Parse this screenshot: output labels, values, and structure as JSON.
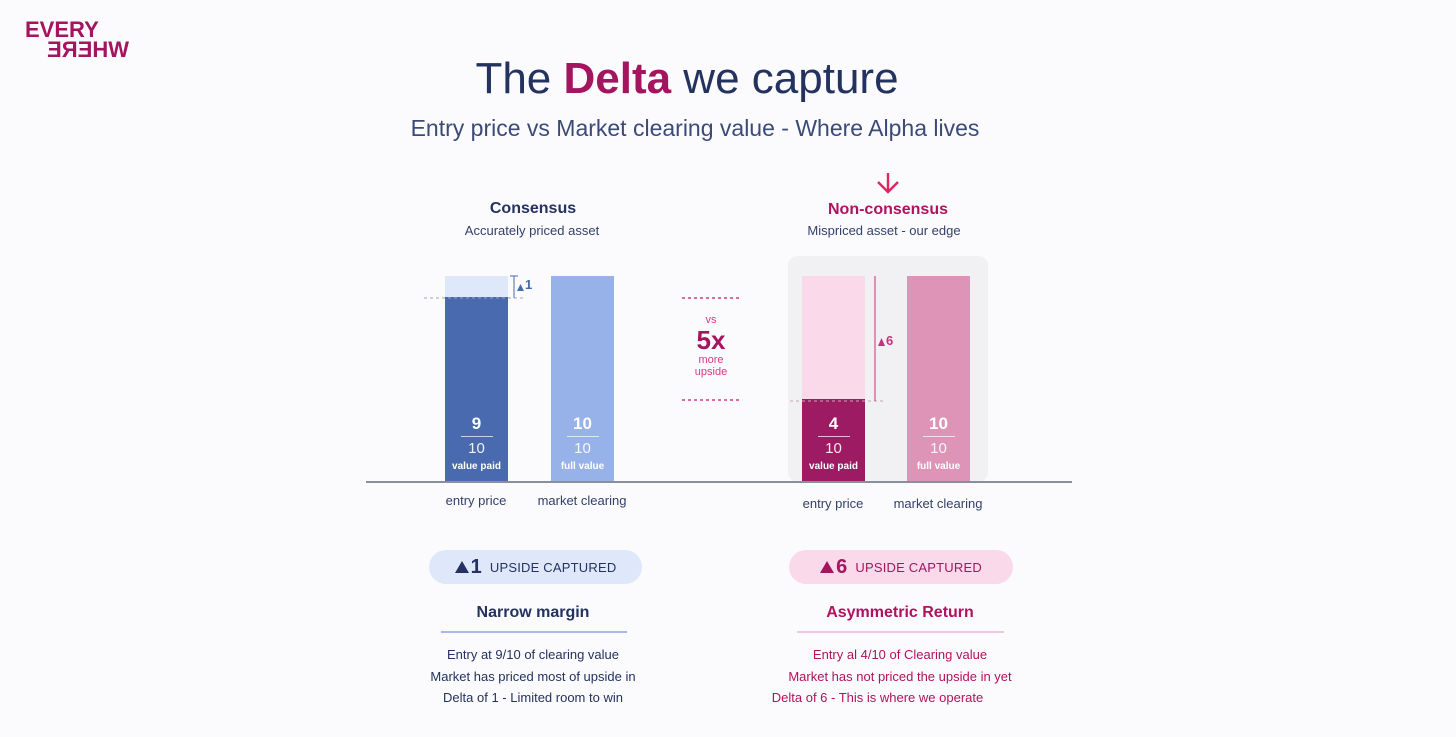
{
  "logo": {
    "line1": "EVERY",
    "line2": "WHERE"
  },
  "title": {
    "prefix": "The ",
    "accent": "Delta",
    "suffix": " we capture"
  },
  "subtitle": "Entry price vs Market clearing value - Where Alpha lives",
  "colors": {
    "navy": "#23325e",
    "magenta": "#a3155f",
    "consensus_entry": "#4a6aaf",
    "consensus_full": "#97b2e8",
    "consensus_gap": "#dfe8fb",
    "nc_entry": "#9c1b63",
    "nc_full": "#de94b6",
    "nc_gap": "#f9d9ea"
  },
  "chart_data": [
    {
      "type": "bar",
      "title": "Consensus",
      "subtitle": "Accurately priced asset",
      "categories": [
        "entry price",
        "market clearing"
      ],
      "values": [
        9,
        10
      ],
      "denominator": 10,
      "bar_captions": [
        "value paid",
        "full value"
      ],
      "delta": 1,
      "delta_label": "1",
      "ylim": [
        0,
        10
      ]
    },
    {
      "type": "bar",
      "title": "Non-consensus",
      "subtitle": "Mispriced asset - our  edge",
      "categories": [
        "entry price",
        "market clearing"
      ],
      "values": [
        4,
        10
      ],
      "denominator": 10,
      "bar_captions": [
        "value paid",
        "full value"
      ],
      "delta": 6,
      "delta_label": "6",
      "ylim": [
        0,
        10
      ]
    }
  ],
  "comparison": {
    "vs": "vs",
    "multiple": "5x",
    "line1": "more",
    "line2": "upside"
  },
  "consensus_panel": {
    "pill_value": "1",
    "pill_text": "UPSIDE CAPTURED",
    "heading": "Narrow margin",
    "notes": [
      "Entry at 9/10 of clearing value",
      "Market has priced most of upside in",
      "Delta of 1 - Limited room to win"
    ]
  },
  "nonconsensus_panel": {
    "pill_value": "6",
    "pill_text": "UPSIDE CAPTURED",
    "heading": "Asymmetric Return",
    "notes": [
      "Entry al 4/10 of Clearing value",
      "Market has not priced the upside in yet",
      "Delta of 6 - This is where we operate"
    ]
  }
}
